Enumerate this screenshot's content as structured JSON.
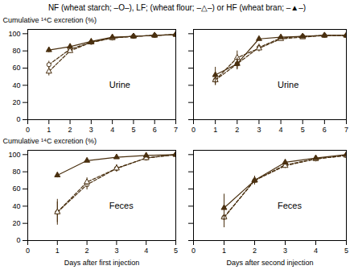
{
  "chart_data": [
    {
      "type": "line",
      "title": "NF (wheat starch; –O–), LF; (wheat flour; –△–) or HF (wheat bran; –▲–)",
      "annotation": "Urine",
      "ylabel": "Cumulative ¹⁴C excretion (%)",
      "x": [
        1,
        2,
        3,
        4,
        5,
        6,
        7
      ],
      "series": [
        {
          "name": "NF",
          "color": "#4a3010",
          "marker": "circle_open",
          "line_style": "dashed",
          "values": [
            64,
            82,
            90,
            95,
            97,
            98,
            99
          ],
          "errors": [
            4,
            3,
            2,
            1,
            0.5,
            0.5,
            0.5
          ]
        },
        {
          "name": "LF",
          "color": "#4a3010",
          "marker": "triangle_open",
          "line_style": "dashed",
          "values": [
            56,
            80,
            90,
            95,
            97,
            98,
            99
          ],
          "errors": [
            5,
            3,
            2,
            1,
            0.5,
            0.5,
            0.5
          ]
        },
        {
          "name": "HF",
          "color": "#4a3010",
          "marker": "triangle",
          "line_style": "solid",
          "values": [
            81,
            85,
            91,
            96,
            97,
            98,
            99
          ],
          "errors": [
            3,
            2,
            1.5,
            1,
            0.5,
            0.5,
            0.5
          ]
        }
      ],
      "xlim": [
        0,
        7
      ],
      "xticks": [
        0,
        1,
        2,
        3,
        4,
        5,
        6,
        7
      ],
      "ylim": [
        0,
        105
      ],
      "yticks": [
        0,
        20,
        40,
        60,
        80,
        100
      ]
    },
    {
      "type": "line",
      "annotation": "Urine",
      "x": [
        1,
        2,
        3,
        4,
        5,
        6,
        7
      ],
      "series": [
        {
          "name": "NF",
          "color": "#4a3010",
          "marker": "circle_open",
          "line_style": "dashed",
          "values": [
            46,
            65,
            84,
            95,
            97,
            98,
            98
          ],
          "errors": [
            6,
            6,
            4,
            1,
            0.5,
            0.5,
            0.5
          ]
        },
        {
          "name": "LF",
          "color": "#4a3010",
          "marker": "triangle_open",
          "line_style": "dashed",
          "values": [
            46,
            72,
            83,
            94,
            96,
            98,
            98
          ],
          "errors": [
            6,
            8,
            4,
            2,
            1,
            0.5,
            0.5
          ]
        },
        {
          "name": "HF",
          "color": "#4a3010",
          "marker": "triangle",
          "line_style": "solid",
          "values": [
            52,
            65,
            94,
            96,
            97,
            98,
            98
          ],
          "errors": [
            9,
            7,
            2,
            1,
            0.5,
            0.5,
            0.5
          ]
        }
      ],
      "xlim": [
        0,
        7
      ],
      "xticks": [
        0,
        1,
        2,
        3,
        4,
        5,
        6,
        7
      ],
      "ylim": [
        0,
        105
      ],
      "yticks": [
        0,
        20,
        40,
        60,
        80,
        100
      ],
      "tick_labels": "x"
    },
    {
      "type": "line",
      "annotation": "Feces",
      "ylabel": "Cumulative ¹⁴C excretion (%)",
      "xlabel": "Days after first injection",
      "x": [
        1,
        2,
        3,
        4,
        5
      ],
      "series": [
        {
          "name": "NF",
          "color": "#4a3010",
          "marker": "circle_open",
          "line_style": "dashed",
          "values": [
            33,
            65,
            84,
            96,
            100
          ],
          "errors": [
            15,
            6,
            4,
            1,
            0.5
          ]
        },
        {
          "name": "LF",
          "color": "#4a3010",
          "marker": "triangle_open",
          "line_style": "dashed",
          "values": [
            33,
            68,
            84,
            96,
            100
          ],
          "errors": [
            12,
            5,
            4,
            1,
            0.5
          ]
        },
        {
          "name": "HF",
          "color": "#4a3010",
          "marker": "triangle",
          "line_style": "solid",
          "values": [
            76,
            93,
            97,
            99,
            100
          ],
          "errors": [
            3,
            2,
            1,
            0.5,
            0.5
          ]
        }
      ],
      "xlim": [
        0,
        5
      ],
      "xticks": [
        0,
        1,
        2,
        3,
        4,
        5
      ],
      "ylim": [
        0,
        105
      ],
      "yticks": [
        0,
        20,
        40,
        60,
        80,
        100
      ]
    },
    {
      "type": "line",
      "annotation": "Feces",
      "xlabel": "Days after second injection",
      "x": [
        1,
        2,
        3,
        4,
        5
      ],
      "series": [
        {
          "name": "NF",
          "color": "#4a3010",
          "marker": "circle_open",
          "line_style": "dashed",
          "values": [
            27,
            70,
            88,
            95,
            99
          ],
          "errors": [
            12,
            5,
            3,
            1,
            0.5
          ]
        },
        {
          "name": "LF",
          "color": "#4a3010",
          "marker": "triangle_open",
          "line_style": "dashed",
          "values": [
            27,
            70,
            87,
            95,
            99
          ],
          "errors": [
            10,
            5,
            3,
            1,
            0.5
          ]
        },
        {
          "name": "HF",
          "color": "#4a3010",
          "marker": "triangle",
          "line_style": "solid",
          "values": [
            38,
            70,
            91,
            96,
            100
          ],
          "errors": [
            16,
            5,
            3,
            1,
            0.5
          ]
        }
      ],
      "xlim": [
        0,
        5
      ],
      "xticks": [
        0,
        1,
        2,
        3,
        4,
        5
      ],
      "ylim": [
        0,
        105
      ],
      "yticks": [
        0,
        20,
        40,
        60,
        80,
        100
      ],
      "tick_labels": "x"
    }
  ]
}
